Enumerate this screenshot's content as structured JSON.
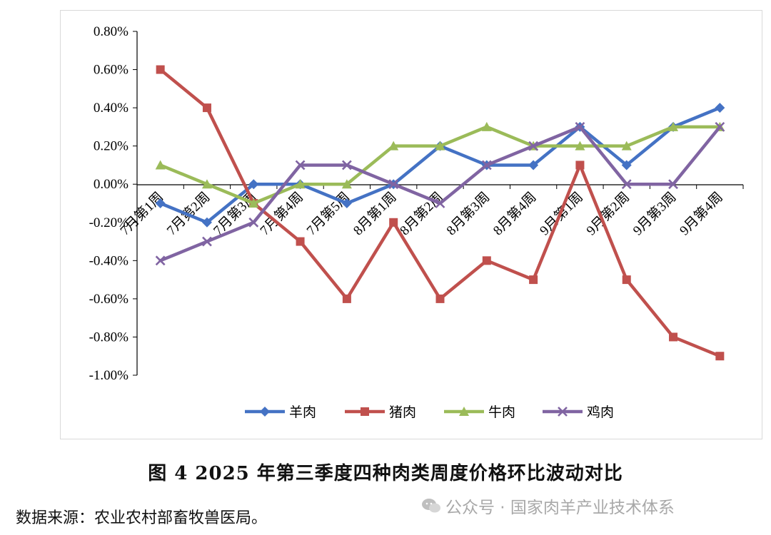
{
  "chart_data": {
    "type": "line",
    "categories": [
      "7月第1周",
      "7月第2周",
      "7月第3周",
      "7月第4周",
      "7月第5周",
      "8月第1周",
      "8月第2周",
      "8月第3周",
      "8月第4周",
      "9月第1周",
      "9月第2周",
      "9月第3周",
      "9月第4周"
    ],
    "y_tick_labels": [
      "0.80%",
      "0.60%",
      "0.40%",
      "0.20%",
      "0.00%",
      "-0.20%",
      "-0.40%",
      "-0.60%",
      "-0.80%",
      "-1.00%"
    ],
    "ylim": [
      -1.0,
      0.8
    ],
    "y_unit": "%",
    "grid": false,
    "legend_position": "bottom",
    "series": [
      {
        "name": "羊肉",
        "color": "#4472C4",
        "marker": "diamond",
        "values": [
          -0.1,
          -0.2,
          0.0,
          0.0,
          -0.1,
          0.0,
          0.2,
          0.1,
          0.1,
          0.3,
          0.1,
          0.3,
          0.4
        ]
      },
      {
        "name": "猪肉",
        "color": "#C0504D",
        "marker": "square",
        "values": [
          0.6,
          0.4,
          -0.1,
          -0.3,
          -0.6,
          -0.2,
          -0.6,
          -0.4,
          -0.5,
          0.1,
          -0.5,
          -0.8,
          -0.9
        ]
      },
      {
        "name": "牛肉",
        "color": "#9BBB59",
        "marker": "triangle",
        "values": [
          0.1,
          0.0,
          -0.1,
          0.0,
          0.0,
          0.2,
          0.2,
          0.3,
          0.2,
          0.2,
          0.2,
          0.3,
          0.3
        ]
      },
      {
        "name": "鸡肉",
        "color": "#8064A2",
        "marker": "x",
        "values": [
          -0.4,
          -0.3,
          -0.2,
          0.1,
          0.1,
          0.0,
          -0.1,
          0.1,
          0.2,
          0.3,
          0.0,
          0.0,
          0.3
        ]
      }
    ]
  },
  "caption": "图 4   2025 年第三季度四种肉类周度价格环比波动对比",
  "source": "数据来源：农业农村部畜牧兽医局。",
  "watermark": "公众号 · 国家肉羊产业技术体系"
}
